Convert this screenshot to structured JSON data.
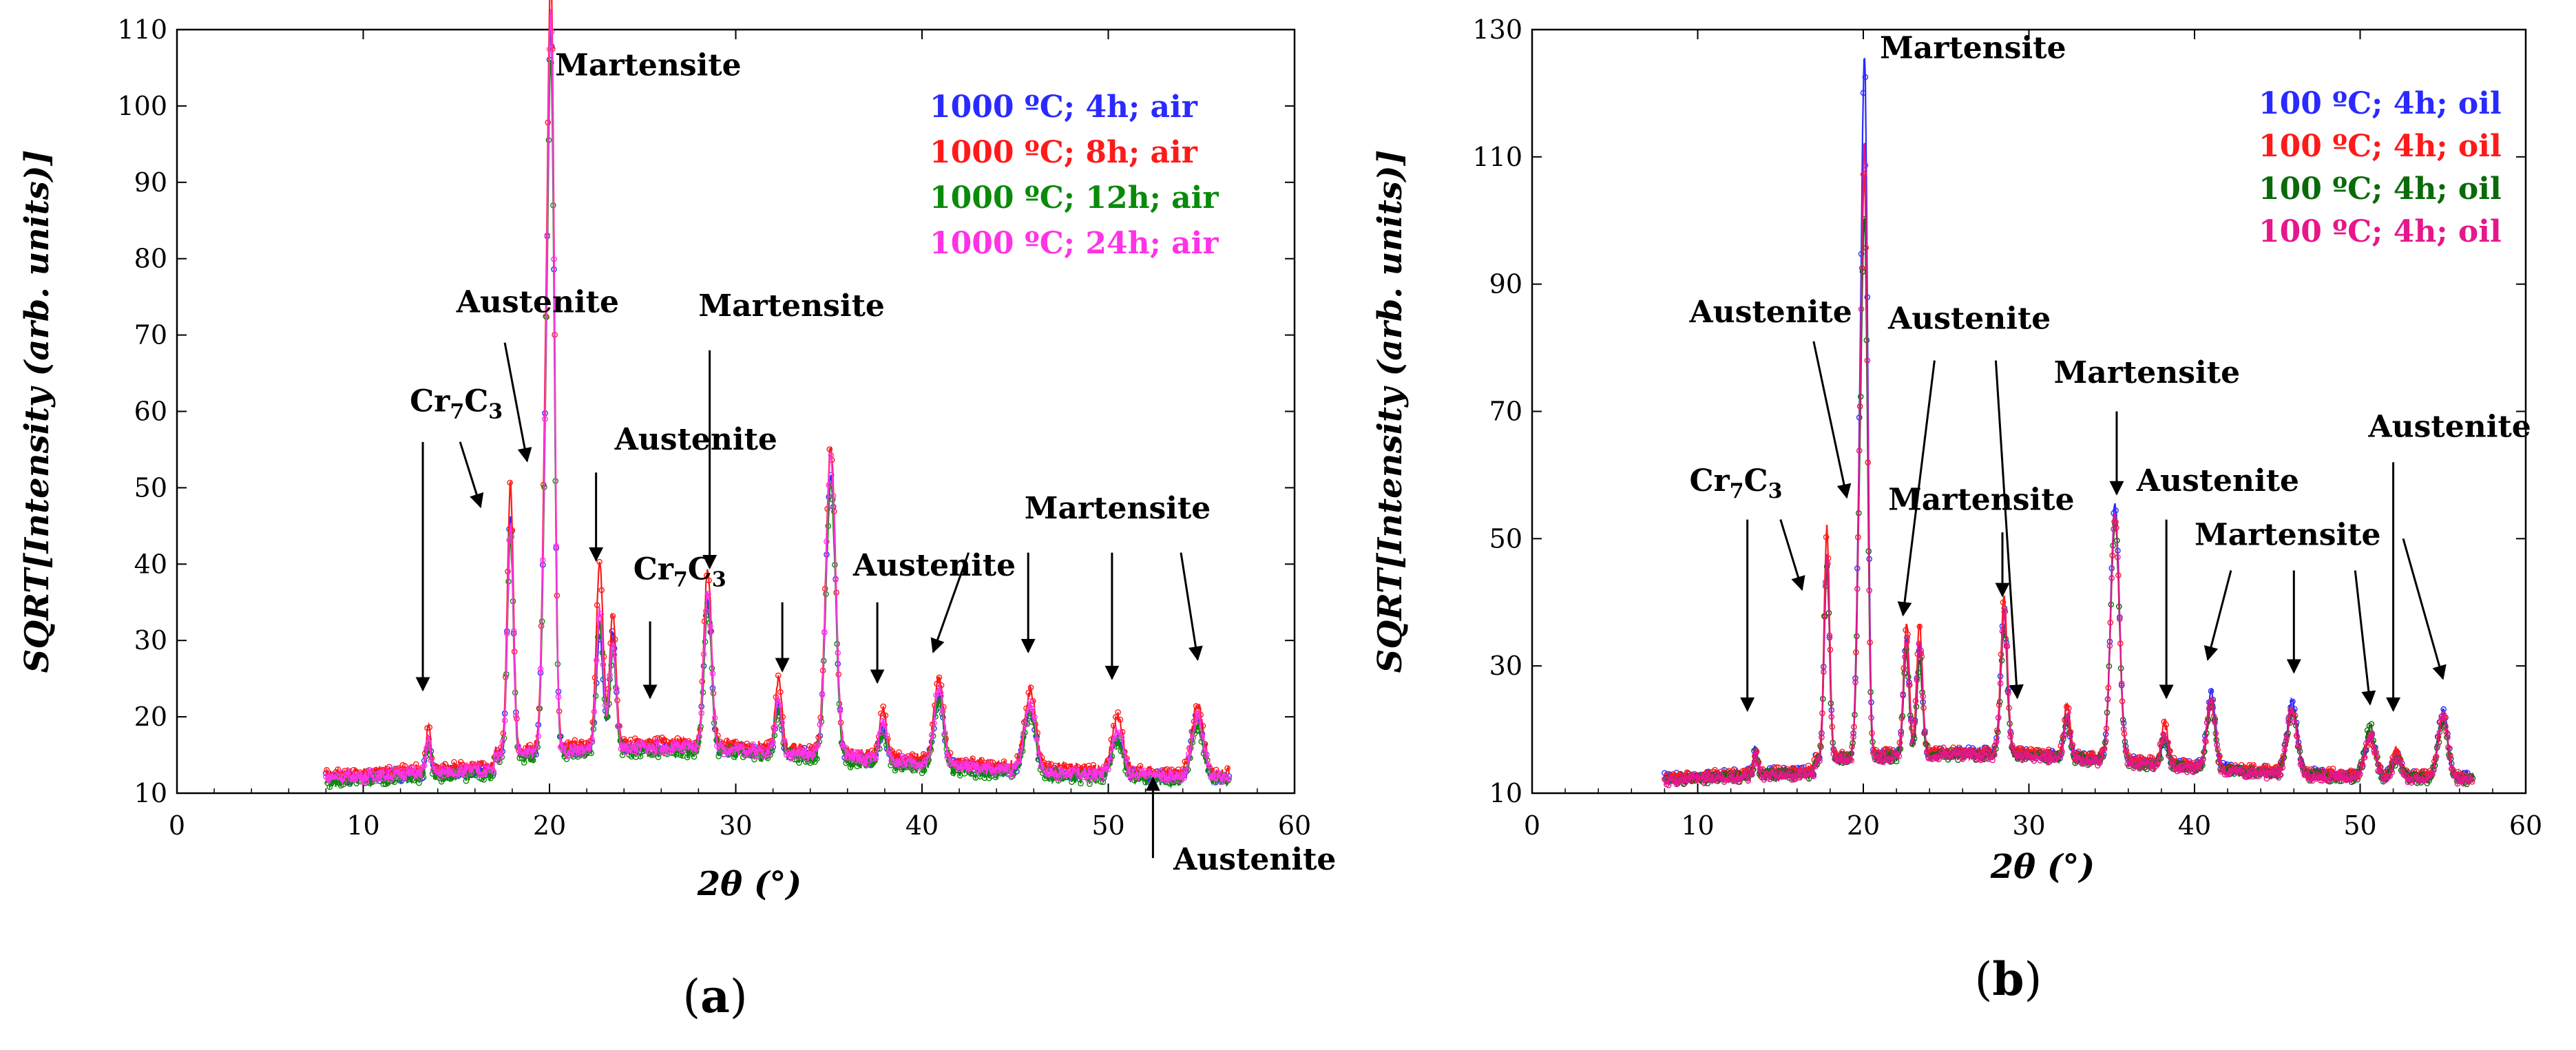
{
  "chart_data": [
    {
      "type": "line",
      "panel_label": "a",
      "xlabel": "2θ (°)",
      "ylabel": "SQRT[Intensity (arb. units)]",
      "xlim": [
        0,
        60
      ],
      "ylim": [
        10,
        110
      ],
      "xticks": [
        0,
        10,
        20,
        30,
        40,
        50,
        60
      ],
      "yticks": [
        10,
        20,
        30,
        40,
        50,
        60,
        70,
        80,
        90,
        100,
        110
      ],
      "legend_position": "top-right",
      "colors": [
        "#2a2aff",
        "#ff1a1a",
        "#0a8a0a",
        "#ff33e6"
      ],
      "series": [
        {
          "name": "1000 ºC; 4h; air",
          "color": "#2a2aff",
          "x_range": [
            8,
            56.5
          ],
          "background": 12,
          "peaks": [
            [
              13.5,
              4.5,
              0.12
            ],
            [
              17.9,
              31,
              0.16
            ],
            [
              19.8,
              34,
              0.18
            ],
            [
              20.1,
              86,
              0.17
            ],
            [
              22.7,
              15,
              0.18
            ],
            [
              23.4,
              15,
              0.17
            ],
            [
              28.5,
              20,
              0.2
            ],
            [
              32.3,
              6,
              0.17
            ],
            [
              35.1,
              37,
              0.26
            ],
            [
              37.9,
              4,
              0.2
            ],
            [
              40.9,
              9,
              0.25
            ],
            [
              45.8,
              8,
              0.3
            ],
            [
              50.5,
              5,
              0.3
            ],
            [
              54.8,
              8,
              0.3
            ]
          ]
        },
        {
          "name": "1000 ºC; 8h; air",
          "color": "#ff1a1a",
          "x_range": [
            8,
            56.5
          ],
          "background": 12.5,
          "peaks": [
            [
              13.5,
              5.5,
              0.12
            ],
            [
              17.9,
              35,
              0.16
            ],
            [
              19.8,
              37,
              0.18
            ],
            [
              20.1,
              92,
              0.17
            ],
            [
              22.7,
              24,
              0.18
            ],
            [
              23.4,
              17,
              0.17
            ],
            [
              28.5,
              23,
              0.2
            ],
            [
              32.3,
              9,
              0.17
            ],
            [
              35.1,
              40,
              0.26
            ],
            [
              37.9,
              6,
              0.2
            ],
            [
              40.9,
              11,
              0.25
            ],
            [
              45.8,
              10,
              0.3
            ],
            [
              50.5,
              7,
              0.3
            ],
            [
              54.8,
              9,
              0.3
            ]
          ]
        },
        {
          "name": "1000 ºC; 12h; air",
          "color": "#0a8a0a",
          "x_range": [
            8,
            56.5
          ],
          "background": 11.5,
          "peaks": [
            [
              13.5,
              4,
              0.12
            ],
            [
              17.9,
              29,
              0.16
            ],
            [
              19.8,
              32,
              0.18
            ],
            [
              20.1,
              82,
              0.17
            ],
            [
              22.7,
              17,
              0.18
            ],
            [
              23.4,
              13,
              0.17
            ],
            [
              28.5,
              19,
              0.2
            ],
            [
              32.3,
              6,
              0.17
            ],
            [
              35.1,
              36,
              0.26
            ],
            [
              37.9,
              4,
              0.2
            ],
            [
              40.9,
              9,
              0.25
            ],
            [
              45.8,
              8,
              0.3
            ],
            [
              50.5,
              5,
              0.3
            ],
            [
              54.8,
              7,
              0.3
            ]
          ]
        },
        {
          "name": "1000 ºC; 24h; air",
          "color": "#ff33e6",
          "x_range": [
            8,
            56.5
          ],
          "background": 12,
          "peaks": [
            [
              13.5,
              4.5,
              0.12
            ],
            [
              17.9,
              30,
              0.16
            ],
            [
              19.8,
              33,
              0.18
            ],
            [
              20.1,
              88,
              0.17
            ],
            [
              22.7,
              18,
              0.18
            ],
            [
              23.4,
              14,
              0.17
            ],
            [
              28.5,
              21,
              0.2
            ],
            [
              32.3,
              7,
              0.17
            ],
            [
              35.1,
              39,
              0.26
            ],
            [
              37.9,
              5,
              0.2
            ],
            [
              40.9,
              10,
              0.25
            ],
            [
              45.8,
              9,
              0.3
            ],
            [
              50.5,
              6,
              0.3
            ],
            [
              54.8,
              8,
              0.3
            ]
          ]
        }
      ],
      "annotations": [
        {
          "text": "Martensite",
          "point": [
            20.3,
            104
          ],
          "arrow_from": null,
          "arrow_to": null
        },
        {
          "text": "Austenite",
          "point": [
            15.0,
            73
          ],
          "arrow_from": [
            17.6,
            69
          ],
          "arrow_to": [
            18.8,
            53.5
          ]
        },
        {
          "text": "Cr7C3",
          "point": [
            12.5,
            60
          ],
          "arrow_from": [
            13.2,
            56
          ],
          "arrow_to": [
            13.2,
            23.5
          ]
        },
        {
          "text": "Cr7C3 second arrow",
          "point": null,
          "arrow_from": [
            15.2,
            56
          ],
          "arrow_to": [
            16.3,
            47.5
          ]
        },
        {
          "text": "Austenite",
          "point": [
            23.5,
            55
          ],
          "arrow_from": [
            22.5,
            52
          ],
          "arrow_to": [
            22.5,
            40.5
          ]
        },
        {
          "text": "Cr7C3",
          "point": [
            24.5,
            38
          ],
          "arrow_from": [
            25.4,
            32.5
          ],
          "arrow_to": [
            25.4,
            22.5
          ]
        },
        {
          "text": "Martensite",
          "point": [
            28,
            72.5
          ],
          "arrow_from": [
            28.6,
            68
          ],
          "arrow_to": [
            28.6,
            39.5
          ]
        },
        {
          "text": "Austenite",
          "point": [
            36.3,
            38.5
          ],
          "arrow_from": [
            32.5,
            35
          ],
          "arrow_to": [
            32.5,
            26
          ]
        },
        {
          "text": "Austenite second arrow",
          "point": null,
          "arrow_from": [
            37.6,
            35
          ],
          "arrow_to": [
            37.6,
            24.5
          ]
        },
        {
          "text": "Martensite",
          "point": [
            45.5,
            46
          ],
          "arrow_from": [
            42.5,
            41.5
          ],
          "arrow_to": [
            40.6,
            28.5
          ]
        },
        {
          "text": "Martensite second arrow",
          "point": null,
          "arrow_from": [
            45.7,
            41.5
          ],
          "arrow_to": [
            45.7,
            28.5
          ]
        },
        {
          "text": "Martensite third arrow",
          "point": null,
          "arrow_from": [
            50.2,
            41.5
          ],
          "arrow_to": [
            50.2,
            25
          ]
        },
        {
          "text": "Martensite fourth arrow",
          "point": null,
          "arrow_from": [
            53.9,
            41.5
          ],
          "arrow_to": [
            54.8,
            27.5
          ]
        },
        {
          "text": "Austenite",
          "point": [
            53.5,
            0
          ],
          "arrow_from": [
            52.4,
            1.5
          ],
          "arrow_to": [
            52.4,
            12
          ]
        }
      ]
    },
    {
      "type": "line",
      "panel_label": "b",
      "xlabel": "2θ (°)",
      "ylabel": "SQRT[Intensity (arb. units)]",
      "xlim": [
        0,
        60
      ],
      "ylim": [
        10,
        130
      ],
      "xticks": [
        0,
        10,
        20,
        30,
        40,
        50,
        60
      ],
      "yticks": [
        10,
        30,
        50,
        70,
        90,
        110,
        130
      ],
      "legend_position": "top-right",
      "colors": [
        "#2a2aff",
        "#ff1a1a",
        "#0a6a0a",
        "#e6178a"
      ],
      "series": [
        {
          "name": "100 ºC; 4h; oil",
          "color": "#2a2aff",
          "x_range": [
            8,
            56.8
          ],
          "background": 12.5,
          "peaks": [
            [
              13.5,
              4,
              0.12
            ],
            [
              17.8,
              31,
              0.16
            ],
            [
              19.8,
              40,
              0.18
            ],
            [
              20.1,
              99,
              0.17
            ],
            [
              22.6,
              18,
              0.17
            ],
            [
              23.4,
              17,
              0.17
            ],
            [
              28.5,
              22,
              0.2
            ],
            [
              32.3,
              6,
              0.17
            ],
            [
              35.2,
              40,
              0.26
            ],
            [
              38.2,
              4,
              0.2
            ],
            [
              41.0,
              12,
              0.25
            ],
            [
              45.9,
              11,
              0.3
            ],
            [
              50.6,
              6,
              0.3
            ],
            [
              52.2,
              3,
              0.25
            ],
            [
              55.0,
              10,
              0.3
            ]
          ]
        },
        {
          "name": "100 ºC; 4h; oil",
          "color": "#ff1a1a",
          "x_range": [
            8,
            56.8
          ],
          "background": 12.5,
          "peaks": [
            [
              13.5,
              3.5,
              0.12
            ],
            [
              17.8,
              36,
              0.16
            ],
            [
              19.8,
              38,
              0.18
            ],
            [
              20.1,
              80,
              0.17
            ],
            [
              22.6,
              20,
              0.17
            ],
            [
              23.4,
              20,
              0.17
            ],
            [
              28.5,
              24,
              0.2
            ],
            [
              32.3,
              8,
              0.17
            ],
            [
              35.2,
              38,
              0.26
            ],
            [
              38.2,
              6,
              0.2
            ],
            [
              41.0,
              10,
              0.25
            ],
            [
              45.9,
              10,
              0.3
            ],
            [
              50.6,
              6,
              0.3
            ],
            [
              52.2,
              4,
              0.25
            ],
            [
              55.0,
              9,
              0.3
            ]
          ]
        },
        {
          "name": "100 ºC; 4h; oil",
          "color": "#0a6a0a",
          "x_range": [
            8,
            56.8
          ],
          "background": 12,
          "peaks": [
            [
              13.5,
              3.5,
              0.12
            ],
            [
              17.8,
              30,
              0.16
            ],
            [
              19.8,
              35,
              0.18
            ],
            [
              20.1,
              75,
              0.17
            ],
            [
              22.6,
              16,
              0.17
            ],
            [
              23.4,
              15,
              0.17
            ],
            [
              28.5,
              20,
              0.2
            ],
            [
              32.3,
              6,
              0.17
            ],
            [
              35.2,
              38,
              0.26
            ],
            [
              38.2,
              4,
              0.2
            ],
            [
              41.0,
              10,
              0.25
            ],
            [
              45.9,
              10,
              0.3
            ],
            [
              50.6,
              8,
              0.3
            ],
            [
              52.2,
              3,
              0.25
            ],
            [
              55.0,
              9,
              0.3
            ]
          ]
        },
        {
          "name": "100 ºC; 4h; oil",
          "color": "#e6178a",
          "x_range": [
            8,
            56.8
          ],
          "background": 12,
          "peaks": [
            [
              13.5,
              3.5,
              0.12
            ],
            [
              17.8,
              32,
              0.16
            ],
            [
              19.8,
              37,
              0.18
            ],
            [
              20.1,
              86,
              0.17
            ],
            [
              22.6,
              18,
              0.17
            ],
            [
              23.4,
              18,
              0.17
            ],
            [
              28.5,
              22,
              0.2
            ],
            [
              32.3,
              7,
              0.17
            ],
            [
              35.2,
              39,
              0.26
            ],
            [
              38.2,
              5,
              0.2
            ],
            [
              41.0,
              11,
              0.25
            ],
            [
              45.9,
              10,
              0.3
            ],
            [
              50.6,
              7,
              0.3
            ],
            [
              52.2,
              3,
              0.25
            ],
            [
              55.0,
              10,
              0.3
            ]
          ]
        }
      ],
      "annotations": [
        {
          "text": "Martensite",
          "point": [
            21.0,
            125.5
          ],
          "arrow_from": null,
          "arrow_to": null
        },
        {
          "text": "Austenite",
          "point": [
            9.5,
            84
          ],
          "arrow_from": [
            17.0,
            81
          ],
          "arrow_to": [
            19.0,
            56.5
          ]
        },
        {
          "text": "Cr7C3",
          "point": [
            9.5,
            57.5
          ],
          "arrow_from": [
            13.0,
            53
          ],
          "arrow_to": [
            13.0,
            23
          ]
        },
        {
          "text": "Cr7C3 second arrow",
          "point": null,
          "arrow_from": [
            15.0,
            53
          ],
          "arrow_to": [
            16.3,
            42
          ]
        },
        {
          "text": "Austenite",
          "point": [
            21.5,
            83
          ],
          "arrow_from": [
            24.3,
            78
          ],
          "arrow_to": [
            22.4,
            38
          ]
        },
        {
          "text": "Austenite second arrow",
          "point": null,
          "arrow_from": [
            28.0,
            78
          ],
          "arrow_to": [
            29.3,
            25
          ]
        },
        {
          "text": "Martensite",
          "point": [
            21.5,
            54.5
          ],
          "arrow_from": [
            28.4,
            51
          ],
          "arrow_to": [
            28.4,
            41
          ]
        },
        {
          "text": "Martensite",
          "point": [
            31.5,
            74.5
          ],
          "arrow_from": [
            35.3,
            70
          ],
          "arrow_to": [
            35.3,
            57
          ]
        },
        {
          "text": "Austenite",
          "point": [
            36.5,
            57.5
          ],
          "arrow_from": [
            38.3,
            53
          ],
          "arrow_to": [
            38.3,
            25
          ]
        },
        {
          "text": "Martensite",
          "point": [
            40.0,
            49
          ],
          "arrow_from": [
            42.2,
            45
          ],
          "arrow_to": [
            40.8,
            31
          ]
        },
        {
          "text": "Martensite second arrow",
          "point": null,
          "arrow_from": [
            46.0,
            45
          ],
          "arrow_to": [
            46.0,
            29
          ]
        },
        {
          "text": "Martensite third arrow",
          "point": null,
          "arrow_from": [
            49.7,
            45
          ],
          "arrow_to": [
            50.6,
            24
          ]
        },
        {
          "text": "Austenite",
          "point": [
            50.5,
            66
          ],
          "arrow_from": [
            52.0,
            62
          ],
          "arrow_to": [
            52.0,
            23
          ]
        },
        {
          "text": "Austenite second arrow",
          "point": null,
          "arrow_from": [
            52.6,
            50
          ],
          "arrow_to": [
            55.0,
            28
          ]
        }
      ]
    }
  ]
}
